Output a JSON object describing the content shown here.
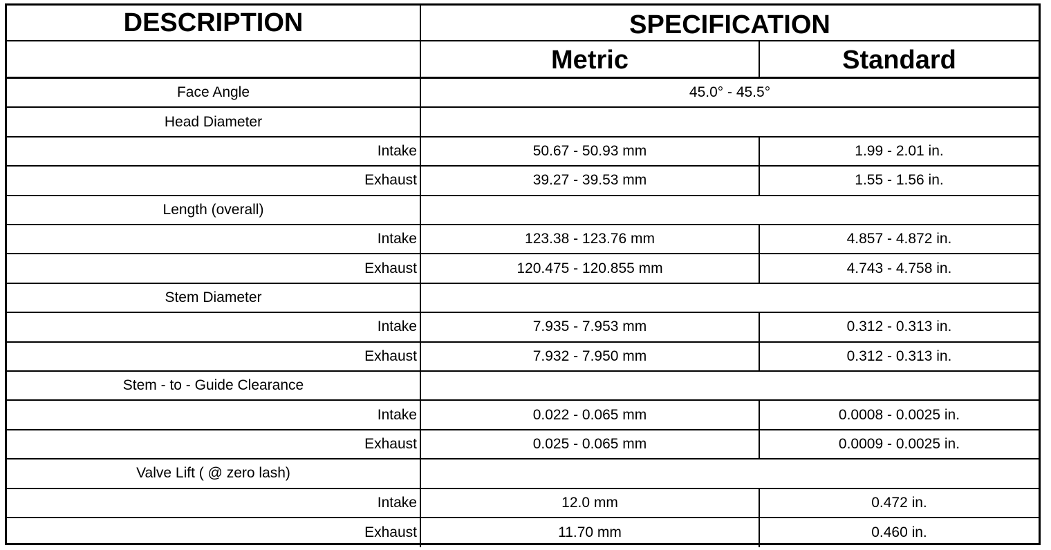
{
  "header": {
    "description": "DESCRIPTION",
    "specification": "SPECIFICATION",
    "metric": "Metric",
    "standard": "Standard"
  },
  "rows": [
    {
      "type": "span",
      "label": "Face Angle",
      "value": "45.0° - 45.5°"
    },
    {
      "type": "parent",
      "label": "Head Diameter"
    },
    {
      "type": "sub",
      "label": "Intake",
      "metric": "50.67 - 50.93 mm",
      "standard": "1.99 - 2.01 in."
    },
    {
      "type": "sub",
      "label": "Exhaust",
      "metric": "39.27 - 39.53 mm",
      "standard": "1.55 - 1.56 in."
    },
    {
      "type": "parent",
      "label": "Length (overall)"
    },
    {
      "type": "sub",
      "label": "Intake",
      "metric": "123.38 - 123.76 mm",
      "standard": "4.857 - 4.872 in."
    },
    {
      "type": "sub",
      "label": "Exhaust",
      "metric": "120.475 - 120.855 mm",
      "standard": "4.743 - 4.758 in."
    },
    {
      "type": "parent",
      "label": "Stem Diameter"
    },
    {
      "type": "sub",
      "label": "Intake",
      "metric": "7.935 - 7.953 mm",
      "standard": "0.312 - 0.313 in."
    },
    {
      "type": "sub",
      "label": "Exhaust",
      "metric": "7.932 - 7.950 mm",
      "standard": "0.312 - 0.313 in."
    },
    {
      "type": "parent",
      "label": "Stem - to - Guide Clearance"
    },
    {
      "type": "sub",
      "label": "Intake",
      "metric": "0.022 - 0.065 mm",
      "standard": "0.0008 - 0.0025 in."
    },
    {
      "type": "sub",
      "label": "Exhaust",
      "metric": "0.025 - 0.065 mm",
      "standard": "0.0009 - 0.0025 in."
    },
    {
      "type": "parent",
      "label": "Valve Lift ( @ zero lash)"
    },
    {
      "type": "sub",
      "label": "Intake",
      "metric": "12.0 mm",
      "standard": "0.472 in."
    },
    {
      "type": "sub",
      "label": "Exhaust",
      "metric": "11.70 mm",
      "standard": "0.460 in."
    }
  ]
}
